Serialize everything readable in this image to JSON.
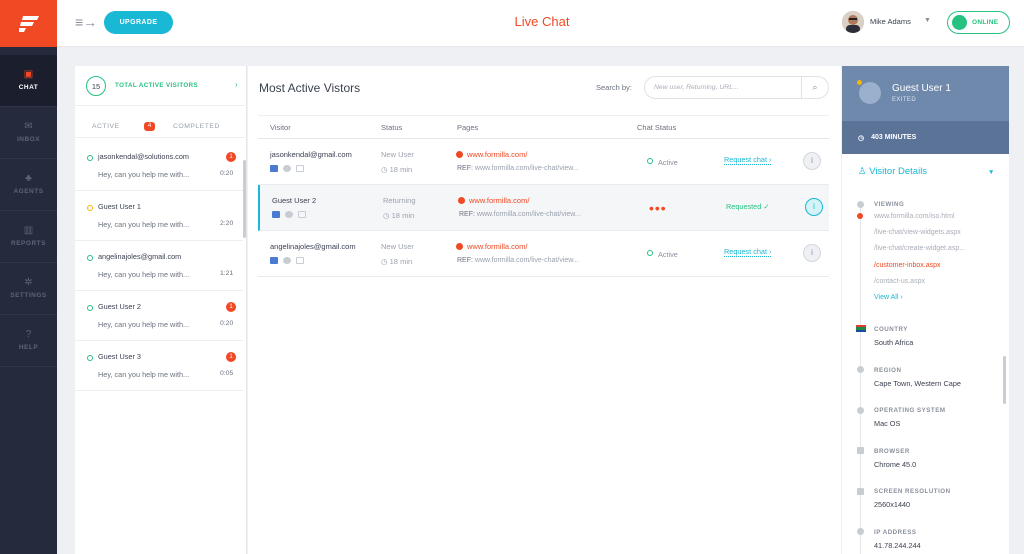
{
  "app": {
    "title": "Live Chat",
    "upgrade_label": "UPGRADE",
    "user_name": "Mike Adams",
    "status_label": "ONLINE",
    "colors": {
      "brand": "#f04923",
      "accent": "#19b8d4",
      "online": "#27c281",
      "sidebar": "#262a3d",
      "panel_header": "#6f89ad"
    }
  },
  "sidebar": {
    "items": [
      {
        "label": "CHAT",
        "icon": "chat-icon"
      },
      {
        "label": "INBOX",
        "icon": "inbox-icon"
      },
      {
        "label": "AGENTS",
        "icon": "agents-icon"
      },
      {
        "label": "REPORTS",
        "icon": "reports-icon"
      },
      {
        "label": "SETTINGS",
        "icon": "gear-icon"
      },
      {
        "label": "HELP",
        "icon": "help-icon"
      }
    ]
  },
  "visitors_panel": {
    "total_count": "15",
    "total_label": "TOTAL ACTIVE VISITORS",
    "tab_active": "ACTIVE",
    "tab_active_count": "4",
    "tab_completed": "COMPLETED",
    "conversations": [
      {
        "name": "jasonkendal@solutions.com",
        "message": "Hey, can you help me with...",
        "time": "0:20",
        "unread": "1"
      },
      {
        "name": "Guest User 1",
        "message": "Hey, can you help me with...",
        "time": "2:20",
        "unread": ""
      },
      {
        "name": "angelinajoles@gmail.com",
        "message": "Hey, can you help me with...",
        "time": "1:21",
        "unread": ""
      },
      {
        "name": "Guest User 2",
        "message": "Hey, can you help me with...",
        "time": "0:20",
        "unread": "1"
      },
      {
        "name": "Guest User 3",
        "message": "Hey, can you help me with...",
        "time": "0:05",
        "unread": "1"
      }
    ]
  },
  "main": {
    "title": "Most Active Vistors",
    "search_label": "Search by:",
    "search_placeholder": "New user, Returning, URL...",
    "columns": [
      "Visitor",
      "Status",
      "Pages",
      "Chat Status"
    ],
    "rows": [
      {
        "visitor": "jasonkendal@gmail.com",
        "status": "New User",
        "duration": "18 min",
        "page": "www.formilla.com/",
        "ref_label": "REF:",
        "ref": "www.formilla.com/live-chat/view...",
        "chat_status": "Active",
        "action": "Request chat ›"
      },
      {
        "visitor": "Guest User 2",
        "status": "Returning",
        "duration": "18 min",
        "page": "www.formilla.com/",
        "ref_label": "REF:",
        "ref": "www.formilla.com/live-chat/view...",
        "chat_status": "•••",
        "action": "Requested ✓"
      },
      {
        "visitor": "angelinajoles@gmail.com",
        "status": "New User",
        "duration": "18 min",
        "page": "www.formilla.com/",
        "ref_label": "REF:",
        "ref": "www.formilla.com/live-chat/view...",
        "chat_status": "Active",
        "action": "Request chat ›"
      }
    ]
  },
  "details": {
    "name": "Guest User 1",
    "state": "EXITED",
    "minutes": "403 MINUTES",
    "section_title": "Visitor Details",
    "viewing_label": "VIEWING",
    "pages": [
      "www.formilla.com/iso.html",
      "/live-chat/view-widgets.aspx",
      "/live-chat/create-widget.asp...",
      "/customer-inbox.aspx",
      "/contact-us.aspx"
    ],
    "view_all": "View All ›",
    "fields": [
      {
        "label": "COUNTRY",
        "value": "South Africa"
      },
      {
        "label": "REGION",
        "value": "Cape Town, Western Cape"
      },
      {
        "label": "OPERATING SYSTEM",
        "value": "Mac OS"
      },
      {
        "label": "BROWSER",
        "value": "Chrome 45.0"
      },
      {
        "label": "SCREEN RESOLUTION",
        "value": "2560x1440"
      },
      {
        "label": "IP ADDRESS",
        "value": "41.78.244.244"
      }
    ]
  }
}
